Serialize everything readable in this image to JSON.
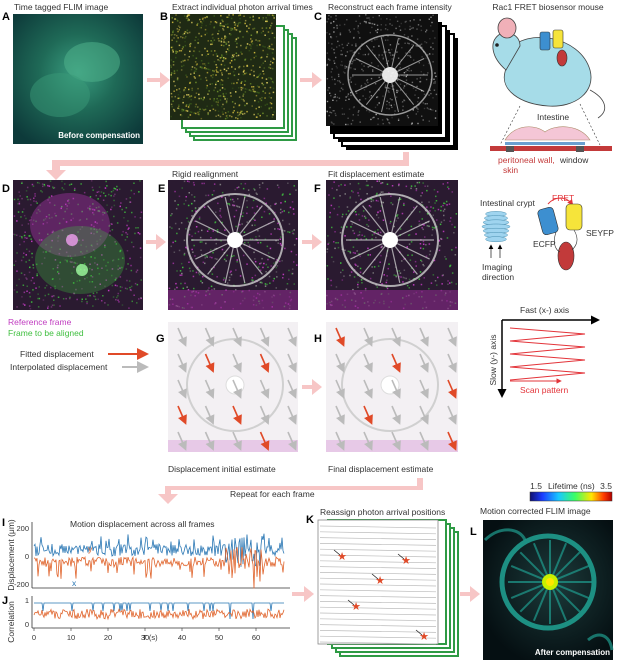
{
  "panels": {
    "A": {
      "letter": "A",
      "title": "Time tagged FLIM image",
      "badge": "Before compensation"
    },
    "B": {
      "letter": "B",
      "title": "Extract individual photon arrival times"
    },
    "C": {
      "letter": "C",
      "title": "Reconstruct each frame intensity"
    },
    "D": {
      "letter": "D",
      "legend_reference": "Reference frame",
      "legend_aligned": "Frame to be aligned"
    },
    "E": {
      "letter": "E",
      "title": "Rigid realignment"
    },
    "F": {
      "letter": "F",
      "title": "Fit displacement estimate"
    },
    "G": {
      "letter": "G",
      "caption": "Displacement initial estimate"
    },
    "H": {
      "letter": "H",
      "caption": "Final displacement estimate"
    },
    "I": {
      "letter": "I",
      "title": "Motion displacement across all frames",
      "ylabel": "Displacement (μm)",
      "yticks": [
        "200",
        "0",
        "-200"
      ],
      "series_y": "y",
      "series_x": "x"
    },
    "J": {
      "letter": "J",
      "ylabel": "Correlation",
      "yticks": [
        "1",
        "0"
      ],
      "xticks": [
        "0",
        "10",
        "20",
        "30",
        "40",
        "50",
        "60"
      ],
      "xlabel": "T (s)"
    },
    "K": {
      "letter": "K",
      "title": "Reassign photon arrival positions"
    },
    "L": {
      "letter": "L",
      "title": "Motion corrected FLIM image",
      "badge": "After compensation"
    }
  },
  "legend_arrows": {
    "fitted": "Fitted displacement",
    "interpolated": "Interpolated displacement"
  },
  "repeat_label": "Repeat for each frame",
  "mouse": {
    "title": "Rac1 FRET biosensor mouse",
    "intestine": "Intestine",
    "wall": "peritoneal wall,",
    "skin": "skin",
    "window": "window",
    "crypt": "Intestinal crypt",
    "imaging": "Imaging",
    "direction": "direction",
    "fret": "FRET",
    "ecfp": "ECFP",
    "seyfp": "SEYFP"
  },
  "scan": {
    "fast_axis": "Fast (x-) axis",
    "slow_axis": "Slow (y-) axis",
    "pattern": "Scan pattern"
  },
  "lifetime": {
    "min": "1.5",
    "label": "Lifetime (ns)",
    "max": "3.5"
  },
  "colors": {
    "accent_red": "#e04a28",
    "arrow_pink": "#f7c6c6",
    "magenta": "#c03cc0",
    "green": "#3fbf3f",
    "teal": "#2aa58f",
    "series_blue": "#2a77b4",
    "series_orange": "#e0642c"
  }
}
